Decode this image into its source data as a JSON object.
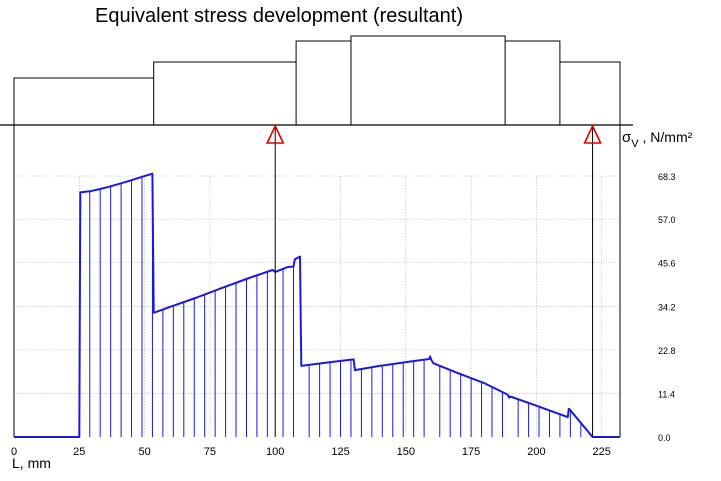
{
  "chart_data": {
    "type": "area",
    "title": "Equivalent stress development (resultant)",
    "xlabel": "L, mm",
    "ylabel": "σV , N/mm²",
    "ylabel_parts": {
      "symbol": "σ",
      "subscript": "V",
      "unit": " , N/mm²"
    },
    "x_ticks": [
      "0",
      "25",
      "50",
      "75",
      "100",
      "125",
      "150",
      "175",
      "200",
      "225"
    ],
    "y_ticks": [
      "0.0",
      "11.4",
      "22.8",
      "34.2",
      "45.6",
      "57.0",
      "68.3"
    ],
    "xlim": [
      0,
      232
    ],
    "ylim": [
      0,
      68.3
    ],
    "grid": true,
    "support_positions": [
      100,
      221.5
    ],
    "series": [
      {
        "color": "#1a1adc",
        "x": [
          0,
          25,
          25.4,
          29,
          33,
          37,
          41,
          45,
          49,
          53,
          53.5,
          60,
          70,
          80,
          90,
          99,
          100,
          104.5,
          105,
          107,
          107.5,
          109.5,
          110,
          120,
          130,
          130.5,
          140,
          150,
          159,
          159.3,
          159.6,
          160.5,
          170,
          180,
          189,
          189.5,
          190,
          200,
          210,
          212,
          212.4,
          213,
          221.5,
          232
        ],
        "y": [
          0,
          0,
          64,
          64.3,
          64.9,
          65.6,
          66.4,
          67.2,
          68.1,
          68.9,
          32.5,
          34.1,
          36.5,
          39.1,
          41.6,
          43.7,
          43.2,
          44.4,
          44.5,
          44.6,
          46.5,
          47.2,
          18.6,
          19.5,
          20.3,
          17.5,
          18.6,
          19.6,
          20.4,
          21.1,
          20.4,
          19.3,
          16.7,
          14.1,
          11.1,
          10.3,
          10.6,
          8.2,
          5.7,
          5.2,
          7.4,
          7.0,
          0,
          0
        ]
      }
    ],
    "hatch_x": [
      25,
      29,
      33,
      37,
      41,
      45,
      49,
      53,
      57,
      61,
      65,
      69,
      73,
      77,
      81,
      85,
      89,
      93,
      97,
      103,
      107,
      113,
      117,
      121,
      125,
      129,
      133,
      137,
      141,
      145,
      149,
      153,
      157,
      163,
      167,
      171,
      175,
      179,
      183,
      187,
      193,
      197,
      201,
      205,
      209,
      213,
      217
    ]
  },
  "shaft": {
    "x": [
      0,
      53.5,
      53.5,
      108,
      108,
      129,
      129,
      188,
      188,
      209,
      209,
      232
    ],
    "diameters": [
      47,
      63,
      84,
      89,
      84,
      63
    ]
  }
}
